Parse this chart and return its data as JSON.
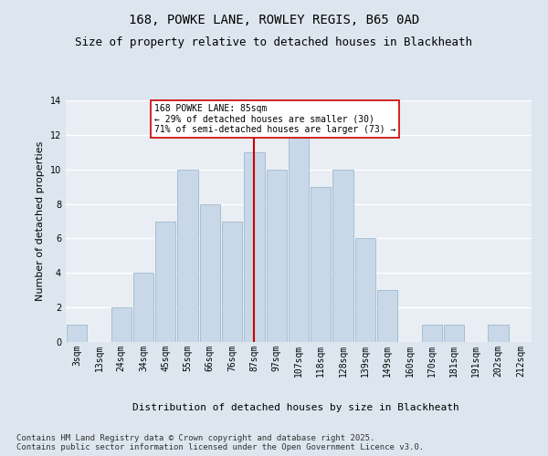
{
  "title_line1": "168, POWKE LANE, ROWLEY REGIS, B65 0AD",
  "title_line2": "Size of property relative to detached houses in Blackheath",
  "xlabel": "Distribution of detached houses by size in Blackheath",
  "ylabel": "Number of detached properties",
  "bar_labels": [
    "3sqm",
    "13sqm",
    "24sqm",
    "34sqm",
    "45sqm",
    "55sqm",
    "66sqm",
    "76sqm",
    "87sqm",
    "97sqm",
    "107sqm",
    "118sqm",
    "128sqm",
    "139sqm",
    "149sqm",
    "160sqm",
    "170sqm",
    "181sqm",
    "191sqm",
    "202sqm",
    "212sqm"
  ],
  "bar_values": [
    1,
    0,
    2,
    4,
    7,
    10,
    8,
    7,
    11,
    10,
    12,
    9,
    10,
    6,
    3,
    0,
    1,
    1,
    0,
    1,
    0
  ],
  "bar_color": "#c8d8e8",
  "bar_edgecolor": "#a0b8cc",
  "ylim": [
    0,
    14
  ],
  "yticks": [
    0,
    2,
    4,
    6,
    8,
    10,
    12,
    14
  ],
  "vline_x": 8,
  "vline_color": "#cc0000",
  "annotation_text": "168 POWKE LANE: 85sqm\n← 29% of detached houses are smaller (30)\n71% of semi-detached houses are larger (73) →",
  "annotation_box_color": "#ffffff",
  "annotation_box_edgecolor": "#cc0000",
  "footer_text": "Contains HM Land Registry data © Crown copyright and database right 2025.\nContains public sector information licensed under the Open Government Licence v3.0.",
  "bg_color": "#dde6ef",
  "plot_bg_color": "#e8eef4",
  "grid_color": "#ffffff",
  "title_fontsize": 10,
  "subtitle_fontsize": 9,
  "label_fontsize": 8,
  "tick_fontsize": 7,
  "footer_fontsize": 6.5
}
